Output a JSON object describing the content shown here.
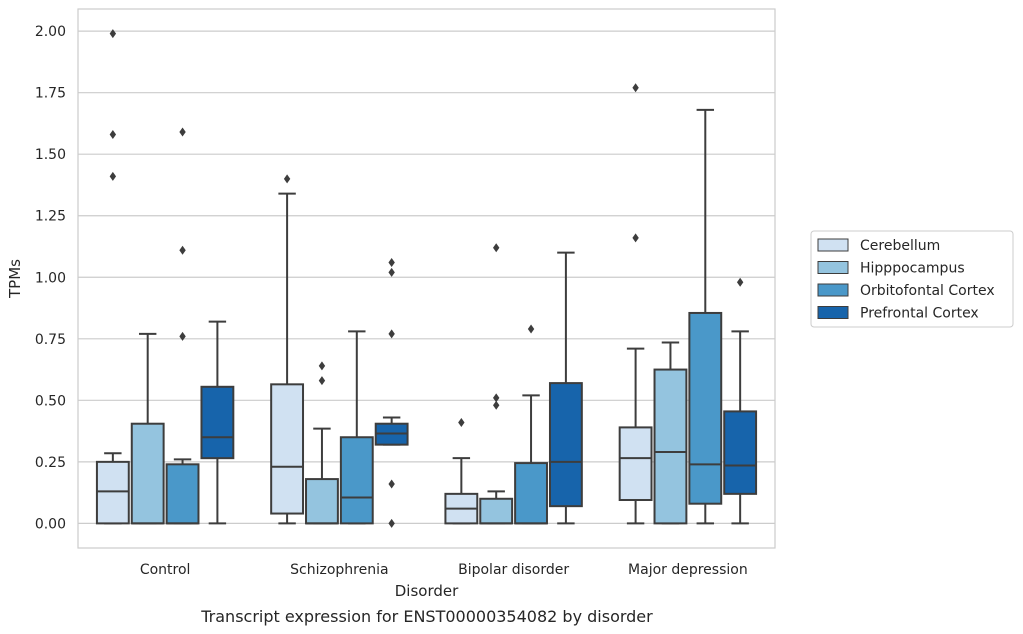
{
  "caption": "Transcript expression for ENST00000354082 by disorder",
  "chart_data": {
    "type": "box",
    "title": "",
    "xlabel": "Disorder",
    "ylabel": "TPMs",
    "ylim": [
      -0.1,
      2.09
    ],
    "yticks": [
      0.0,
      0.25,
      0.5,
      0.75,
      1.0,
      1.25,
      1.5,
      1.75,
      2.0
    ],
    "ytick_labels": [
      "0.00",
      "0.25",
      "0.50",
      "0.75",
      "1.00",
      "1.25",
      "1.50",
      "1.75",
      "2.00"
    ],
    "grid": "horizontal",
    "legend_position": "right",
    "categories": [
      "Control",
      "Schizophrenia",
      "Bipolar disorder",
      "Major depression"
    ],
    "series": [
      {
        "name": "Cerebellum",
        "color": "#d0e1f2",
        "boxes": [
          {
            "whislo": 0.0,
            "q1": 0.0,
            "med": 0.13,
            "q3": 0.25,
            "whishi": 0.285,
            "fliers": [
              1.41,
              1.58,
              1.99
            ]
          },
          {
            "whislo": 0.0,
            "q1": 0.04,
            "med": 0.23,
            "q3": 0.565,
            "whishi": 1.34,
            "fliers": [
              1.4
            ]
          },
          {
            "whislo": 0.0,
            "q1": 0.0,
            "med": 0.06,
            "q3": 0.12,
            "whishi": 0.265,
            "fliers": [
              0.41
            ]
          },
          {
            "whislo": 0.0,
            "q1": 0.095,
            "med": 0.265,
            "q3": 0.39,
            "whishi": 0.71,
            "fliers": [
              1.16,
              1.77
            ]
          }
        ]
      },
      {
        "name": "Hipppocampus",
        "color": "#94c4df",
        "boxes": [
          {
            "whislo": 0.0,
            "q1": 0.0,
            "med": 0.0,
            "q3": 0.405,
            "whishi": 0.77,
            "fliers": []
          },
          {
            "whislo": 0.0,
            "q1": 0.0,
            "med": 0.0,
            "q3": 0.18,
            "whishi": 0.385,
            "fliers": [
              0.58,
              0.64
            ]
          },
          {
            "whislo": 0.0,
            "q1": 0.0,
            "med": 0.0,
            "q3": 0.1,
            "whishi": 0.13,
            "fliers": [
              0.48,
              0.51,
              1.12
            ]
          },
          {
            "whislo": 0.0,
            "q1": 0.0,
            "med": 0.29,
            "q3": 0.625,
            "whishi": 0.735,
            "fliers": []
          }
        ]
      },
      {
        "name": "Orbitofontal Cortex",
        "color": "#4a98c9",
        "boxes": [
          {
            "whislo": 0.0,
            "q1": 0.0,
            "med": 0.0,
            "q3": 0.24,
            "whishi": 0.26,
            "fliers": [
              0.76,
              1.11,
              1.59
            ]
          },
          {
            "whislo": 0.0,
            "q1": 0.0,
            "med": 0.105,
            "q3": 0.35,
            "whishi": 0.78,
            "fliers": []
          },
          {
            "whislo": 0.0,
            "q1": 0.0,
            "med": 0.0,
            "q3": 0.245,
            "whishi": 0.52,
            "fliers": [
              0.79
            ]
          },
          {
            "whislo": 0.0,
            "q1": 0.08,
            "med": 0.24,
            "q3": 0.855,
            "whishi": 1.68,
            "fliers": []
          }
        ]
      },
      {
        "name": "Prefrontal Cortex",
        "color": "#1764ab",
        "boxes": [
          {
            "whislo": 0.0,
            "q1": 0.265,
            "med": 0.35,
            "q3": 0.555,
            "whishi": 0.82,
            "fliers": []
          },
          {
            "whislo": 0.32,
            "q1": 0.32,
            "med": 0.365,
            "q3": 0.405,
            "whishi": 0.43,
            "fliers": [
              0.0,
              0.16,
              0.77,
              1.02,
              1.06
            ]
          },
          {
            "whislo": 0.0,
            "q1": 0.07,
            "med": 0.25,
            "q3": 0.57,
            "whishi": 1.1,
            "fliers": []
          },
          {
            "whislo": 0.0,
            "q1": 0.12,
            "med": 0.235,
            "q3": 0.455,
            "whishi": 0.78,
            "fliers": [
              0.98
            ]
          }
        ]
      }
    ]
  }
}
